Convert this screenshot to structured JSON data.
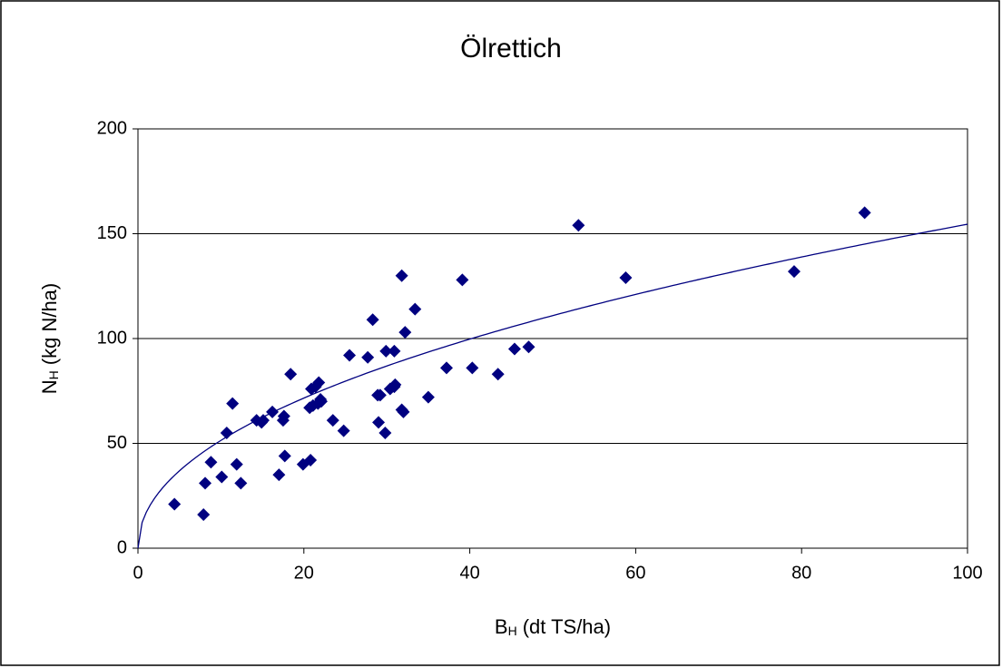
{
  "chart_data": {
    "type": "scatter",
    "title": "Ölrettich",
    "xlabel": {
      "symbol": "B",
      "subscript": "H",
      "unit": "(dt TS/ha)"
    },
    "ylabel": {
      "symbol": "N",
      "subscript": "H",
      "unit": "(kg N/ha)"
    },
    "xlim": [
      0,
      100
    ],
    "xticks": [
      0,
      20,
      40,
      60,
      80,
      100
    ],
    "ylim": [
      0,
      200
    ],
    "yticks": [
      0,
      50,
      100,
      150,
      200
    ],
    "grid": true,
    "color": "#000080",
    "trendline": {
      "type": "power",
      "coefficient": 17.1,
      "exponent": 0.478,
      "color": "#000080"
    },
    "x": [
      4.4,
      8.1,
      7.9,
      8.8,
      10.1,
      10.7,
      11.4,
      11.9,
      12.4,
      14.3,
      14.9,
      15.1,
      16.2,
      17.0,
      17.5,
      17.6,
      17.7,
      18.4,
      19.9,
      20.8,
      20.7,
      20.9,
      21.1,
      21.4,
      21.7,
      21.8,
      22.1,
      22.0,
      23.5,
      24.8,
      25.5,
      27.7,
      28.3,
      28.9,
      29.2,
      29.0,
      29.8,
      29.9,
      30.4,
      30.9,
      30.9,
      31.0,
      31.8,
      31.8,
      32.0,
      32.2,
      33.4,
      35.0,
      37.2,
      39.1,
      40.3,
      43.4,
      45.4,
      47.1,
      53.1,
      58.8,
      79.1,
      87.6
    ],
    "values": [
      21,
      31,
      16,
      41,
      34,
      55,
      69,
      40,
      31,
      61,
      60,
      61,
      65,
      35,
      61,
      63,
      44,
      83,
      40,
      42,
      67,
      76,
      68,
      77,
      69,
      79,
      70,
      71,
      61,
      56,
      92,
      91,
      109,
      73,
      73,
      60,
      55,
      94,
      76,
      94,
      77,
      78,
      130,
      66,
      65,
      103,
      114,
      72,
      86,
      128,
      86,
      83,
      95,
      96,
      154,
      129,
      132,
      160
    ]
  }
}
